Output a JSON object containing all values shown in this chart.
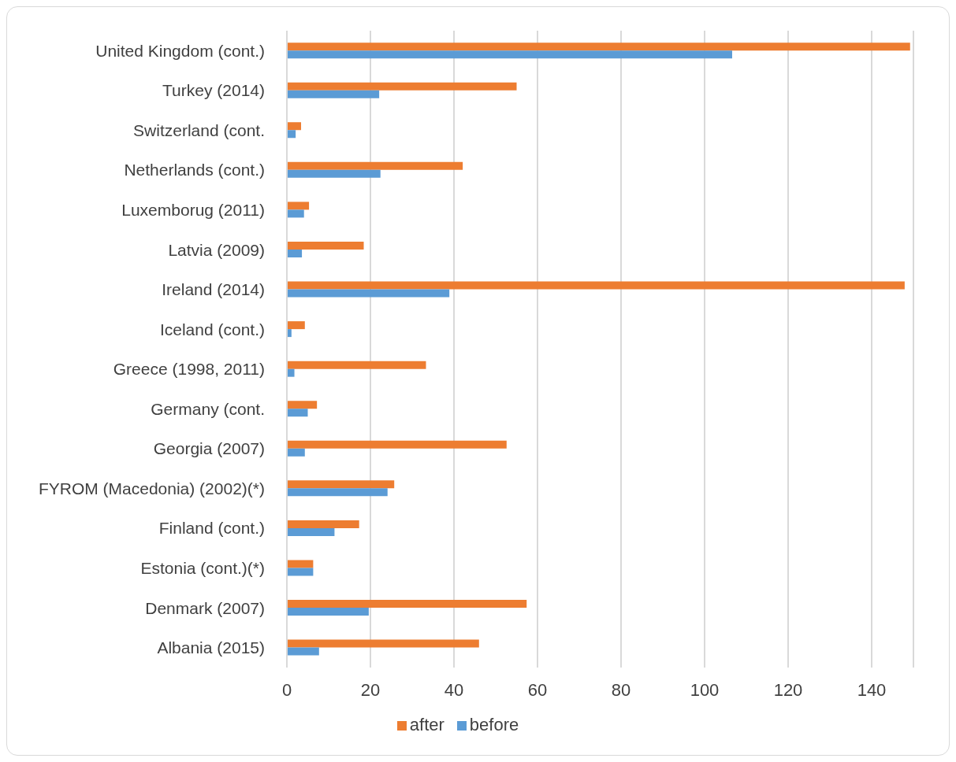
{
  "chart_data": {
    "type": "bar",
    "orientation": "horizontal",
    "categories": [
      "United Kingdom (cont.)",
      "Turkey (2014)",
      "Switzerland (cont.",
      "Netherlands (cont.)",
      "Luxemborug (2011)",
      "Latvia (2009)",
      "Ireland (2014)",
      "Iceland (cont.)",
      "Greece (1998, 2011)",
      "Germany (cont.",
      "Georgia (2007)",
      "FYROM (Macedonia) (2002)(*)",
      "Finland (cont.)",
      "Estonia (cont.)(*)",
      "Denmark (2007)",
      "Albania (2015)"
    ],
    "series": [
      {
        "name": "after",
        "color": "#ed7d31",
        "values": [
          149.2,
          55.0,
          3.4,
          42.1,
          5.3,
          18.4,
          147.9,
          4.3,
          33.3,
          7.2,
          52.6,
          25.7,
          17.3,
          6.3,
          57.4,
          46.0
        ]
      },
      {
        "name": "before",
        "color": "#5b9bd5",
        "values": [
          106.6,
          22.1,
          2.1,
          22.4,
          4.1,
          3.6,
          38.9,
          1.1,
          1.8,
          5.0,
          4.3,
          24.1,
          11.4,
          6.3,
          19.6,
          7.7
        ]
      }
    ],
    "xlim": [
      0,
      150
    ],
    "xticks": [
      0,
      20,
      40,
      60,
      80,
      100,
      120,
      140
    ],
    "grid": "x",
    "legend": "bottom"
  }
}
